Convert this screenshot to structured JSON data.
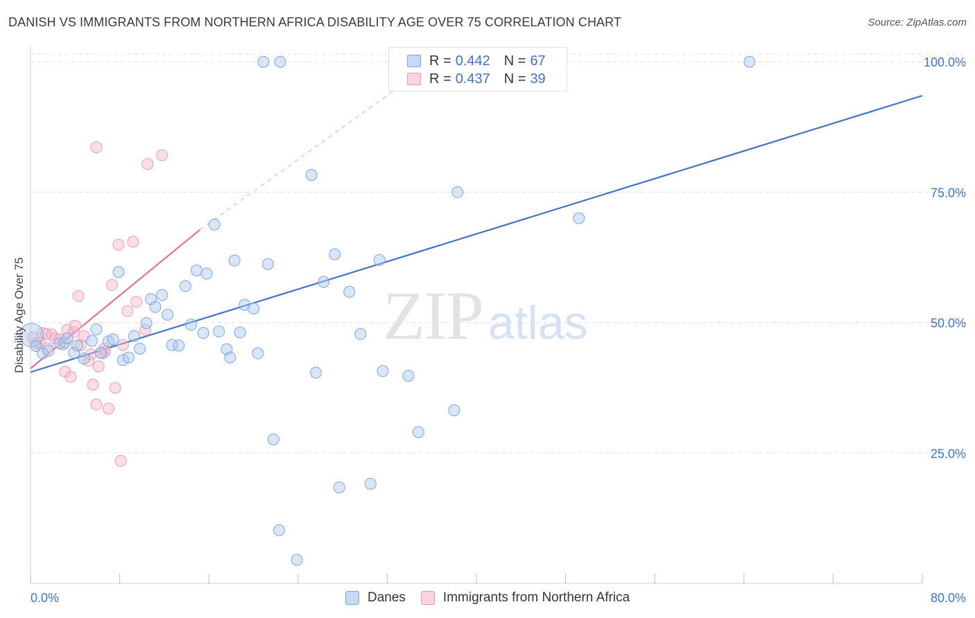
{
  "header": {
    "title": "DANISH VS IMMIGRANTS FROM NORTHERN AFRICA DISABILITY AGE OVER 75 CORRELATION CHART",
    "source": "Source: ZipAtlas.com"
  },
  "watermark": {
    "zip": "ZIP",
    "atlas": "atlas"
  },
  "legend_top": {
    "rows": [
      {
        "r_label": "R =",
        "r_value": "0.442",
        "n_label": "N =",
        "n_value": "67",
        "color": "#a9c8f0"
      },
      {
        "r_label": "R =",
        "r_value": "0.437",
        "n_label": "N =",
        "n_value": "39",
        "color": "#f7b8cb"
      }
    ]
  },
  "legend_bottom": {
    "items": [
      {
        "label": "Danes"
      },
      {
        "label": "Immigrants from Northern Africa"
      }
    ]
  },
  "chart_data": {
    "type": "scatter",
    "title": "DANISH VS IMMIGRANTS FROM NORTHERN AFRICA DISABILITY AGE OVER 75 CORRELATION CHART",
    "xlabel": "",
    "ylabel": "Disability Age Over 75",
    "xlim": [
      0,
      80
    ],
    "ylim": [
      0,
      102
    ],
    "x_tick_labels": [
      "0.0%",
      "80.0%"
    ],
    "y_tick_labels": [
      "25.0%",
      "50.0%",
      "75.0%",
      "100.0%"
    ],
    "y_ticks": [
      25,
      50,
      75,
      100
    ],
    "colors": {
      "blue": "#3f74c5",
      "blue_fill": "#a9c8f0",
      "pink": "#e46f97",
      "pink_fill": "#f7b8cb",
      "tick_label": "#3f74c5"
    },
    "series": [
      {
        "name": "Danes",
        "color": "#3f74c5",
        "trend": {
          "x0": 0,
          "y0": 40.5,
          "x1": 80,
          "y1": 93.5
        },
        "points": [
          [
            0.1,
            47.6
          ],
          [
            0.5,
            45.5
          ],
          [
            1.1,
            44.1
          ],
          [
            1.6,
            44.6
          ],
          [
            2.6,
            46.0
          ],
          [
            3.1,
            46.2
          ],
          [
            3.9,
            44.2
          ],
          [
            4.2,
            45.6
          ],
          [
            4.8,
            43.1
          ],
          [
            5.5,
            46.5
          ],
          [
            5.9,
            48.7
          ],
          [
            6.3,
            44.2
          ],
          [
            7.0,
            46.4
          ],
          [
            7.4,
            46.8
          ],
          [
            7.9,
            59.7
          ],
          [
            8.3,
            42.8
          ],
          [
            8.8,
            43.3
          ],
          [
            9.3,
            47.4
          ],
          [
            9.8,
            45.0
          ],
          [
            10.4,
            49.9
          ],
          [
            10.8,
            54.5
          ],
          [
            11.2,
            53.0
          ],
          [
            11.8,
            55.3
          ],
          [
            12.3,
            51.5
          ],
          [
            12.7,
            45.7
          ],
          [
            13.3,
            45.6
          ],
          [
            13.9,
            57.0
          ],
          [
            14.4,
            49.6
          ],
          [
            14.9,
            60.0
          ],
          [
            15.5,
            48.0
          ],
          [
            15.8,
            59.4
          ],
          [
            16.5,
            68.8
          ],
          [
            16.9,
            48.3
          ],
          [
            17.6,
            44.9
          ],
          [
            17.9,
            43.3
          ],
          [
            18.3,
            61.9
          ],
          [
            18.8,
            48.1
          ],
          [
            19.2,
            53.4
          ],
          [
            20.0,
            52.7
          ],
          [
            20.4,
            44.1
          ],
          [
            20.9,
            100
          ],
          [
            21.3,
            61.2
          ],
          [
            21.8,
            27.6
          ],
          [
            22.3,
            10.2
          ],
          [
            22.4,
            100
          ],
          [
            23.9,
            4.5
          ],
          [
            25.2,
            78.3
          ],
          [
            25.6,
            40.4
          ],
          [
            26.3,
            57.8
          ],
          [
            27.3,
            63.1
          ],
          [
            27.7,
            18.4
          ],
          [
            28.6,
            55.9
          ],
          [
            29.6,
            47.8
          ],
          [
            30.5,
            19.1
          ],
          [
            31.3,
            62.0
          ],
          [
            31.6,
            40.7
          ],
          [
            33.9,
            39.8
          ],
          [
            34.8,
            29.0
          ],
          [
            38.0,
            33.2
          ],
          [
            38.3,
            75.0
          ],
          [
            39.1,
            100
          ],
          [
            41.8,
            100
          ],
          [
            42.1,
            100
          ],
          [
            43.1,
            100
          ],
          [
            49.2,
            70.0
          ],
          [
            64.5,
            100
          ],
          [
            3.3,
            47.0
          ]
        ]
      },
      {
        "name": "Immigrants from Northern Africa",
        "color": "#e46f97",
        "trend": {
          "x0": 0,
          "y0": 41.2,
          "x1": 15.2,
          "y1": 67.8
        },
        "trend_dashed": {
          "x0": 15.2,
          "y0": 67.8,
          "x1": 37.5,
          "y1": 102
        },
        "points": [
          [
            0.2,
            47.1
          ],
          [
            0.5,
            46.0
          ],
          [
            0.8,
            46.1
          ],
          [
            1.1,
            48.0
          ],
          [
            1.5,
            45.1
          ],
          [
            1.9,
            47.7
          ],
          [
            2.2,
            47.0
          ],
          [
            2.6,
            46.8
          ],
          [
            2.9,
            45.8
          ],
          [
            3.1,
            40.6
          ],
          [
            3.3,
            48.6
          ],
          [
            3.6,
            39.6
          ],
          [
            3.9,
            48.2
          ],
          [
            4.0,
            49.4
          ],
          [
            4.3,
            55.1
          ],
          [
            4.5,
            45.7
          ],
          [
            4.8,
            47.4
          ],
          [
            5.2,
            42.7
          ],
          [
            5.4,
            43.9
          ],
          [
            5.6,
            38.1
          ],
          [
            5.9,
            34.3
          ],
          [
            6.1,
            41.6
          ],
          [
            6.5,
            44.1
          ],
          [
            7.0,
            33.5
          ],
          [
            7.3,
            57.2
          ],
          [
            7.6,
            37.5
          ],
          [
            7.9,
            64.9
          ],
          [
            8.1,
            23.5
          ],
          [
            8.3,
            45.7
          ],
          [
            8.7,
            52.2
          ],
          [
            9.2,
            65.5
          ],
          [
            9.5,
            54.0
          ],
          [
            10.3,
            48.6
          ],
          [
            10.5,
            80.4
          ],
          [
            11.8,
            82.1
          ],
          [
            5.9,
            83.6
          ],
          [
            6.6,
            45.0
          ],
          [
            6.7,
            44.5
          ],
          [
            1.4,
            47.8
          ]
        ]
      }
    ]
  }
}
